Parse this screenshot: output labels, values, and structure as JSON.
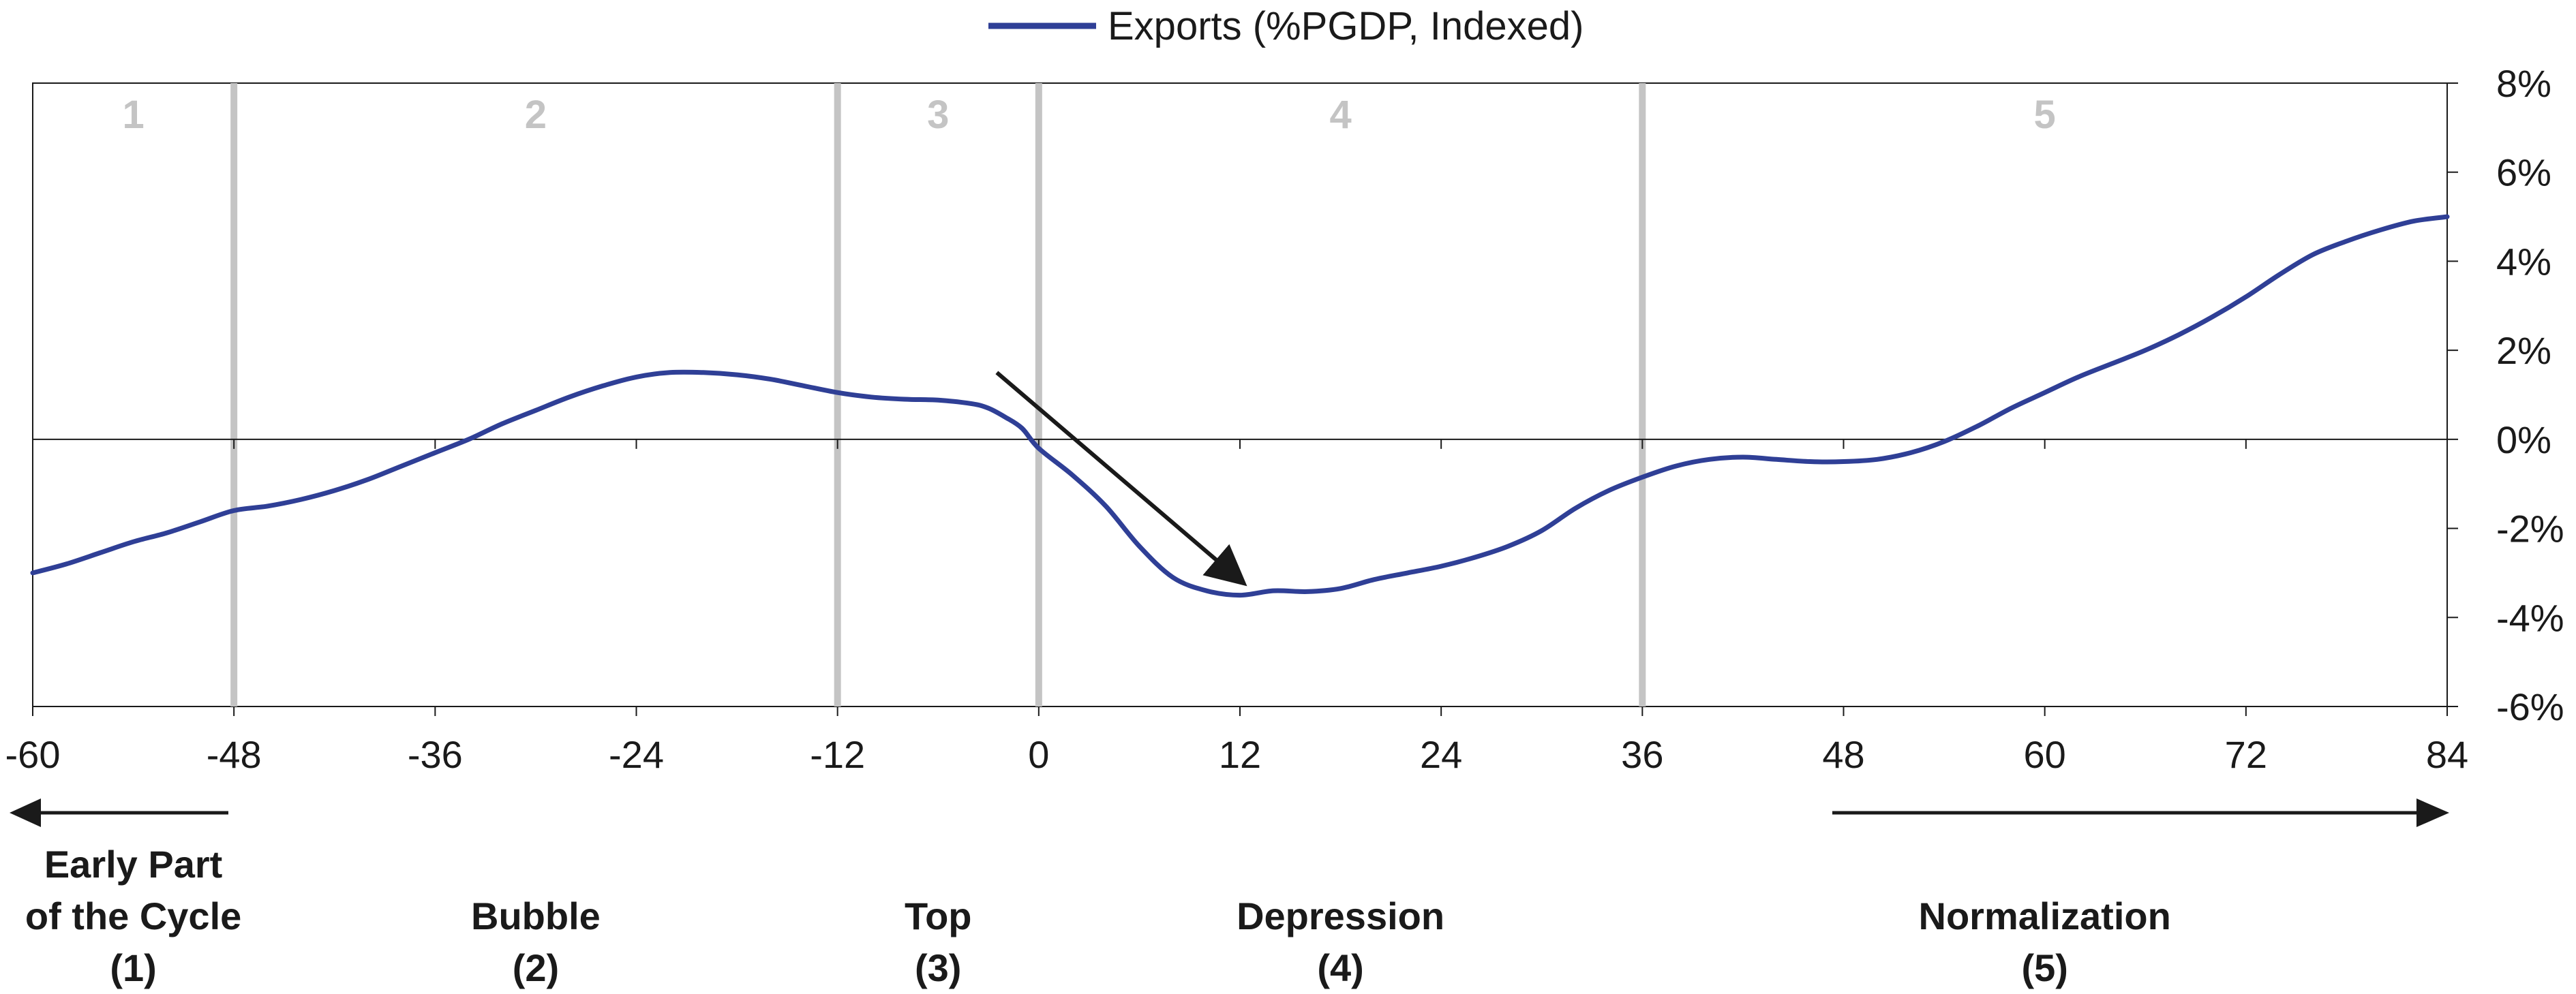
{
  "legend": {
    "label": "Exports (%PGDP, Indexed)"
  },
  "colors": {
    "series": "#2f3f96",
    "phase_line": "#c4c4c4",
    "phase_number": "#c4c4c4",
    "axis": "#1a1a1a"
  },
  "chart_data": {
    "type": "line",
    "x_ticks": [
      -60,
      -48,
      -36,
      -24,
      -12,
      0,
      12,
      24,
      36,
      48,
      60,
      72,
      84
    ],
    "x_tick_labels": [
      "-60",
      "-48",
      "-36",
      "-24",
      "-12",
      "0",
      "12",
      "24",
      "36",
      "48",
      "60",
      "72",
      "84"
    ],
    "y_ticks": [
      8,
      6,
      4,
      2,
      0,
      -2,
      -4,
      -6
    ],
    "y_tick_labels": [
      "8%",
      "6%",
      "4%",
      "2%",
      "0%",
      "-2%",
      "-4%",
      "-6%"
    ],
    "xlim": [
      -60,
      84
    ],
    "ylim": [
      -6,
      8
    ],
    "y_axis_position": "right",
    "legend_position": "top-center",
    "grid": false,
    "phase_boundaries": [
      -48,
      -12,
      0,
      36
    ],
    "phase_numbers": [
      {
        "label": "1",
        "x": -54
      },
      {
        "label": "2",
        "x": -30
      },
      {
        "label": "3",
        "x": -6
      },
      {
        "label": "4",
        "x": 18
      },
      {
        "label": "5",
        "x": 60
      }
    ],
    "phase_labels": [
      {
        "lines": [
          "Early Part",
          "of the Cycle",
          "(1)"
        ],
        "x": -54
      },
      {
        "lines": [
          "Bubble",
          "(2)"
        ],
        "x": -30
      },
      {
        "lines": [
          "Top",
          "(3)"
        ],
        "x": -6
      },
      {
        "lines": [
          "Depression",
          "(4)"
        ],
        "x": 18
      },
      {
        "lines": [
          "Normalization",
          "(5)"
        ],
        "x": 60
      }
    ],
    "annotations": [
      {
        "kind": "arrow",
        "from": [
          -2.5,
          1.5
        ],
        "to": [
          11.5,
          -3.0
        ]
      }
    ],
    "series": [
      {
        "name": "Exports (%PGDP, Indexed)",
        "x": [
          -60,
          -58,
          -56,
          -54,
          -52,
          -50,
          -48,
          -46,
          -44,
          -42,
          -40,
          -38,
          -36,
          -34,
          -32,
          -30,
          -28,
          -26,
          -24,
          -22,
          -20,
          -18,
          -16,
          -14,
          -12,
          -10,
          -8,
          -6,
          -4,
          -3,
          -2,
          -1,
          0,
          2,
          4,
          6,
          8,
          10,
          12,
          14,
          16,
          18,
          20,
          22,
          24,
          26,
          28,
          30,
          32,
          34,
          36,
          38,
          40,
          42,
          44,
          46,
          48,
          50,
          52,
          54,
          56,
          58,
          60,
          62,
          64,
          66,
          68,
          70,
          72,
          74,
          76,
          78,
          80,
          82,
          84
        ],
        "y": [
          -3.0,
          -2.8,
          -2.55,
          -2.3,
          -2.1,
          -1.85,
          -1.6,
          -1.5,
          -1.35,
          -1.15,
          -0.9,
          -0.6,
          -0.3,
          0.0,
          0.35,
          0.65,
          0.95,
          1.2,
          1.4,
          1.5,
          1.5,
          1.45,
          1.35,
          1.2,
          1.05,
          0.95,
          0.9,
          0.88,
          0.8,
          0.7,
          0.5,
          0.25,
          -0.2,
          -0.8,
          -1.5,
          -2.4,
          -3.1,
          -3.4,
          -3.5,
          -3.4,
          -3.42,
          -3.35,
          -3.15,
          -3.0,
          -2.85,
          -2.65,
          -2.4,
          -2.05,
          -1.55,
          -1.15,
          -0.85,
          -0.6,
          -0.45,
          -0.4,
          -0.45,
          -0.5,
          -0.5,
          -0.45,
          -0.3,
          -0.05,
          0.3,
          0.7,
          1.05,
          1.4,
          1.7,
          2.0,
          2.35,
          2.75,
          3.2,
          3.7,
          4.15,
          4.45,
          4.7,
          4.9,
          5.0
        ]
      }
    ]
  }
}
